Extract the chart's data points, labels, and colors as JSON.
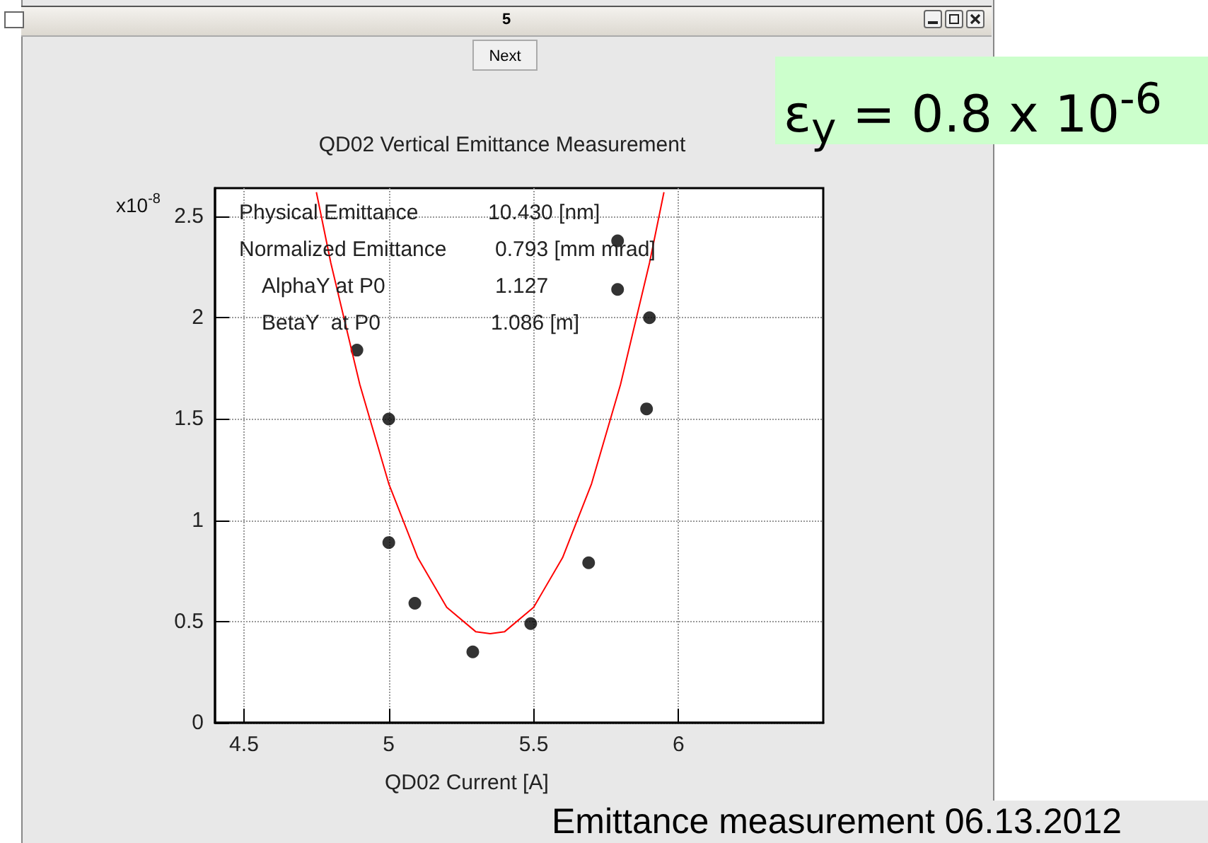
{
  "chart_data": {
    "type": "scatter",
    "title": "QD02 Vertical Emittance Measurement",
    "xlabel": "QD02 Current [A]",
    "ylabel": "x10$^{-8}$",
    "annotations": [
      "5",
      "Next",
      "Physical Emittance",
      "10.430 [nm]",
      "Normalized Emittance",
      "0.793 [mm mrad]",
      "AlphaY at P0",
      "1.127",
      "BetaY  at P0",
      "1.086 [m]",
      "ε$_{y}$ = 0.8 x 10$^{-6}$",
      "Emittance measurement 06.13.2012"
    ],
    "xlim": [
      4.4,
      6.5
    ],
    "xticks": [
      4.5,
      5,
      5.5,
      6
    ],
    "ylim": [
      0,
      2.64
    ],
    "yticks": [
      0,
      0.5,
      1,
      1.5,
      2,
      2.5
    ],
    "grid": true,
    "series": [
      {
        "marker": "circle",
        "color": "#000000",
        "x": [
          4.89,
          5.0,
          5.0,
          5.09,
          5.29,
          5.49,
          5.69,
          5.79,
          5.79,
          5.89,
          5.9
        ],
        "values": [
          1.84,
          1.5,
          0.89,
          0.59,
          0.35,
          0.49,
          0.79,
          2.38,
          2.14,
          1.55,
          2.0
        ]
      },
      {
        "type": "line",
        "marker": "none",
        "color": "#ff0000",
        "x": [
          4.75,
          4.8,
          4.9,
          5.0,
          5.1,
          5.2,
          5.3,
          5.35,
          5.4,
          5.5,
          5.6,
          5.7,
          5.8,
          5.9,
          5.95
        ],
        "values": [
          2.62,
          2.27,
          1.67,
          1.18,
          0.815,
          0.57,
          0.45,
          0.44,
          0.45,
          0.57,
          0.815,
          1.18,
          1.67,
          2.27,
          2.62
        ]
      }
    ]
  }
}
